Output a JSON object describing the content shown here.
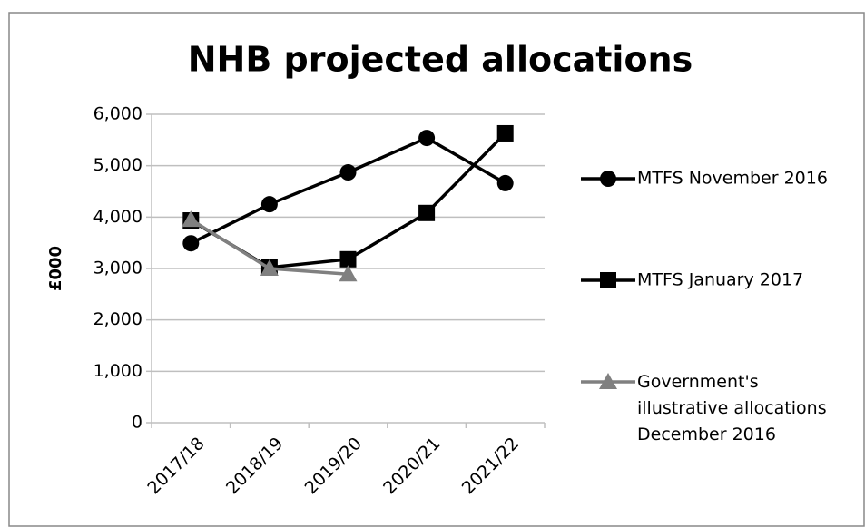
{
  "chart_data": {
    "type": "line",
    "title": "NHB projected allocations",
    "y_label": "£000",
    "categories": [
      "2017/18",
      "2018/19",
      "2019/20",
      "2020/21",
      "2021/22"
    ],
    "series": [
      {
        "name": "MTFS November 2016",
        "color": "#000000",
        "marker": "circle",
        "values": [
          3490,
          4250,
          4870,
          5540,
          4660
        ]
      },
      {
        "name": "MTFS January 2017",
        "color": "#000000",
        "marker": "square",
        "values": [
          3935,
          3020,
          3180,
          4080,
          5630
        ]
      },
      {
        "name": "Government's illustrative allocations December 2016",
        "color": "#808080",
        "marker": "triangle",
        "values": [
          3950,
          3000,
          2890,
          null,
          null
        ]
      }
    ],
    "ylim": [
      0,
      6000
    ],
    "yticks": [
      0,
      {
        "value": 1000,
        "label": "1,000"
      },
      {
        "value": 2000,
        "label": "2,000"
      },
      {
        "value": 3000,
        "label": "3,000"
      },
      {
        "value": 4000,
        "label": "4,000"
      },
      {
        "value": 5000,
        "label": "5,000"
      },
      {
        "value": 6000,
        "label": "6,000"
      }
    ],
    "grid": true,
    "legend": "right"
  }
}
